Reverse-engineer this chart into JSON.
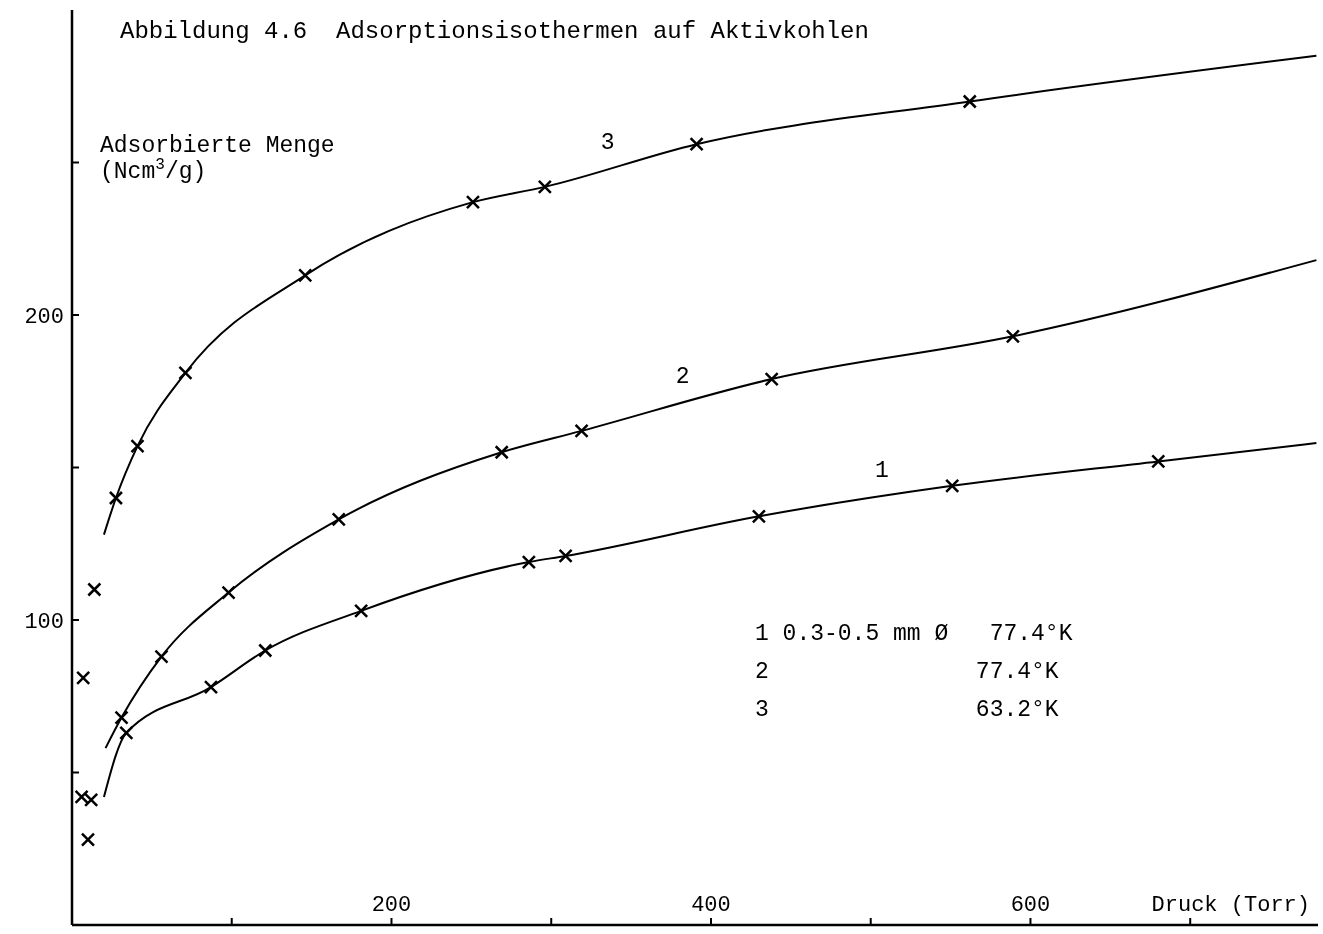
{
  "chart_data": {
    "type": "line",
    "title": "Abbildung 4.6  Adsorptionsisothermen auf Aktivkohlen",
    "xlabel": "Druck (Torr)",
    "ylabel": "Adsorbierte Menge\n(Ncm$^{3}$/g)",
    "xlim": [
      0,
      780
    ],
    "xticks": [
      {
        "value": 100,
        "label": null
      },
      {
        "value": 200,
        "label": "200"
      },
      {
        "value": 300,
        "label": null
      },
      {
        "value": 400,
        "label": "400"
      },
      {
        "value": 500,
        "label": null
      },
      {
        "value": 600,
        "label": "600"
      },
      {
        "value": 700,
        "label": null
      }
    ],
    "ylim": [
      0,
      300
    ],
    "yticks": [
      {
        "value": 50,
        "label": null
      },
      {
        "value": 100,
        "label": "100"
      },
      {
        "value": 150,
        "label": null
      },
      {
        "value": 200,
        "label": "200"
      },
      {
        "value": 250,
        "label": null
      }
    ],
    "grid": false,
    "line_style": "solid",
    "marker": "none",
    "series": [
      {
        "name": "3",
        "color": "#000000",
        "x": [
          20,
          27.5,
          41,
          71,
          146,
          251,
          296,
          391,
          562,
          779
        ],
        "values": [
          128,
          140,
          157,
          181,
          213,
          237,
          242,
          256,
          270,
          285
        ]
      },
      {
        "name": "2",
        "color": "#000000",
        "x": [
          21,
          31,
          56,
          98,
          167,
          269,
          319,
          438,
          589,
          779
        ],
        "values": [
          58,
          68,
          88,
          109,
          133,
          155,
          162,
          179,
          193,
          218
        ]
      },
      {
        "name": "1",
        "color": "#000000",
        "x": [
          20,
          34,
          87,
          121,
          181,
          286,
          309,
          430,
          551,
          680,
          779
        ],
        "values": [
          42,
          63,
          78,
          90,
          103,
          119,
          121,
          134,
          144,
          152,
          158
        ]
      },
      {
        "type": "scatter",
        "marker": "cross",
        "color": "#000000",
        "x": [
          7,
          14,
          27.5,
          41,
          71,
          146,
          251,
          296,
          391,
          562
        ],
        "values": [
          81,
          110,
          140,
          157,
          181,
          213,
          237,
          242,
          256,
          270
        ]
      },
      {
        "type": "scatter",
        "marker": "cross",
        "color": "#000000",
        "x": [
          6,
          12,
          31,
          56,
          98,
          167,
          269,
          319,
          438,
          589
        ],
        "values": [
          42,
          41,
          68,
          88,
          109,
          133,
          155,
          162,
          179,
          193
        ]
      },
      {
        "type": "scatter",
        "marker": "cross",
        "color": "#000000",
        "x": [
          10,
          34,
          87,
          121,
          181,
          286,
          309,
          430,
          551,
          680
        ],
        "values": [
          28,
          63,
          78,
          90,
          103,
          119,
          121,
          134,
          144,
          152
        ]
      }
    ],
    "annotations": [
      "1 0.3-0.5 mm Ø   77.4°K",
      "2               77.4°K",
      "3               63.2°K"
    ]
  }
}
